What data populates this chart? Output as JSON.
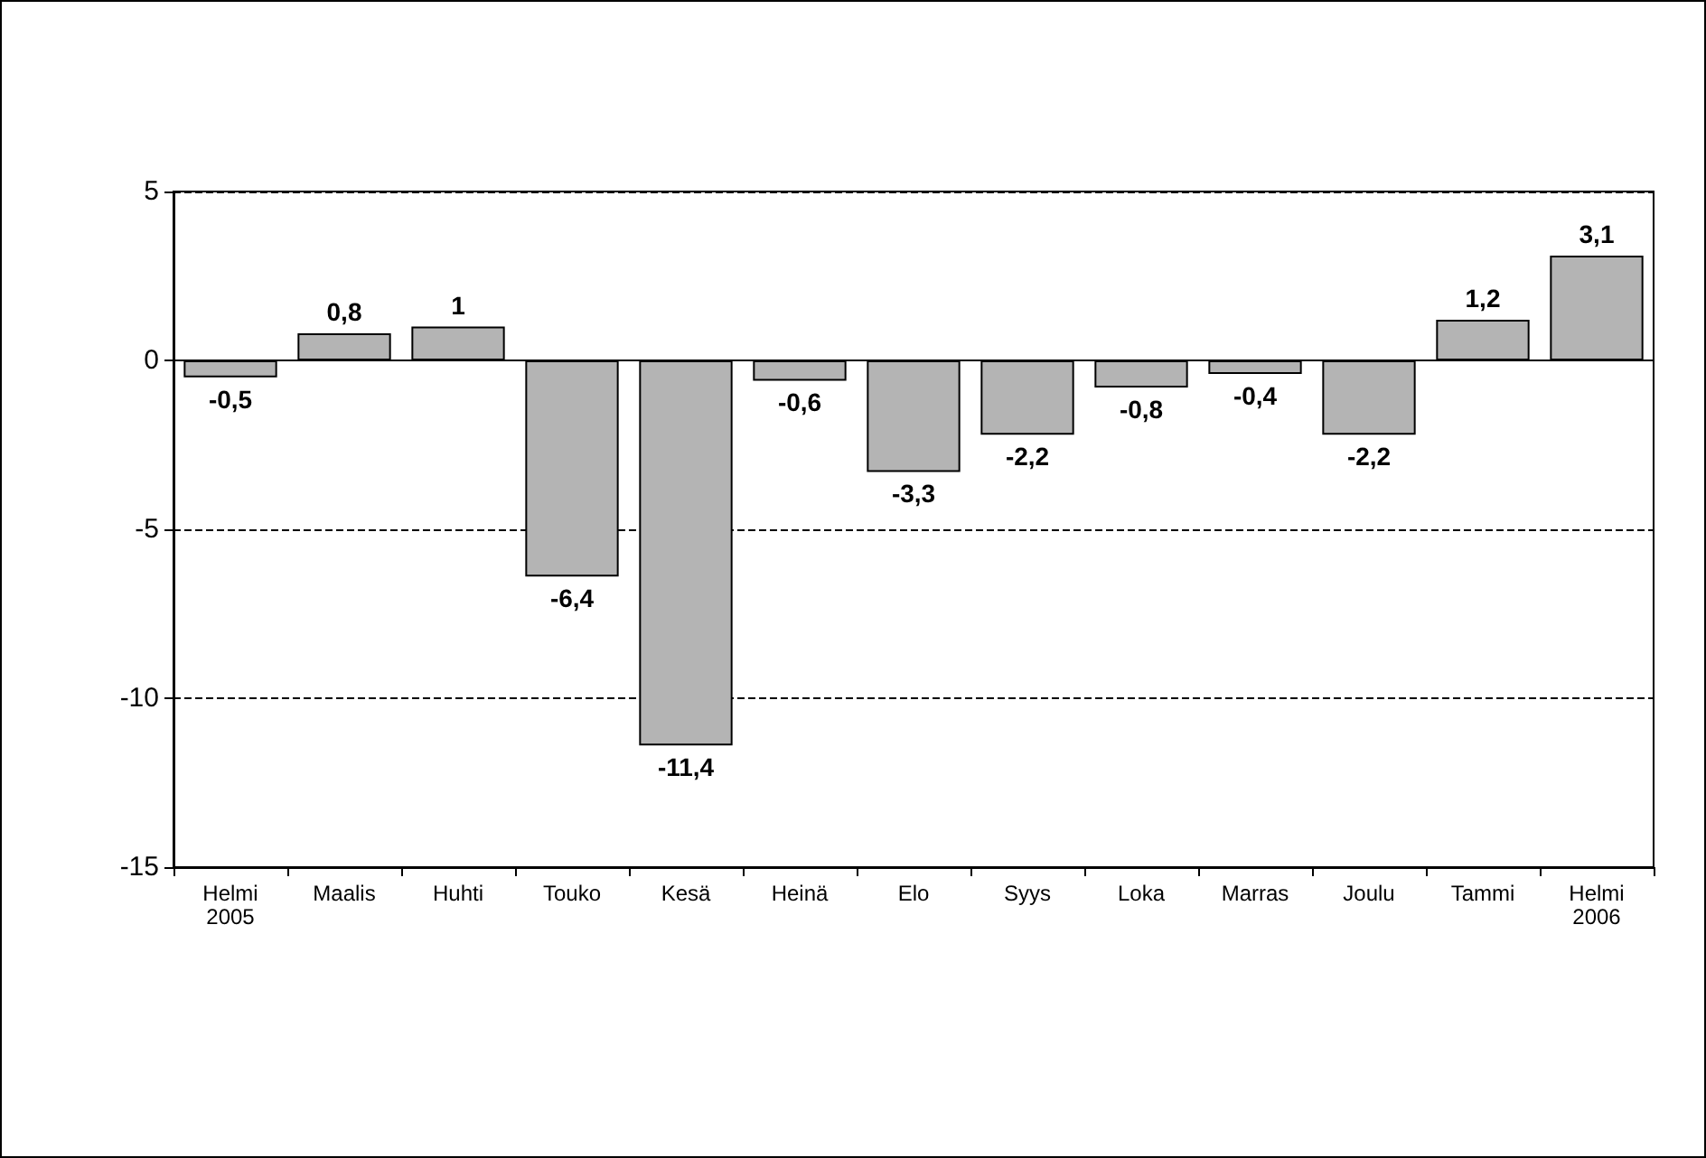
{
  "chart_data": {
    "type": "bar",
    "categories": [
      "Helmi\n2005",
      "Maalis",
      "Huhti",
      "Touko",
      "Kesä",
      "Heinä",
      "Elo",
      "Syys",
      "Loka",
      "Marras",
      "Joulu",
      "Tammi",
      "Helmi\n2006"
    ],
    "values": [
      -0.5,
      0.8,
      1,
      -6.4,
      -11.4,
      -0.6,
      -3.3,
      -2.2,
      -0.8,
      -0.4,
      -2.2,
      1.2,
      3.1
    ],
    "value_labels": [
      "-0,5",
      "0,8",
      "1",
      "-6,4",
      "-11,4",
      "-0,6",
      "-3,3",
      "-2,2",
      "-0,8",
      "-0,4",
      "-2,2",
      "1,2",
      "3,1"
    ],
    "color": "#b4b4b4",
    "ylim": [
      -15,
      5
    ],
    "yticks": [
      -15,
      -10,
      -5,
      0,
      5
    ],
    "grid": "y"
  }
}
